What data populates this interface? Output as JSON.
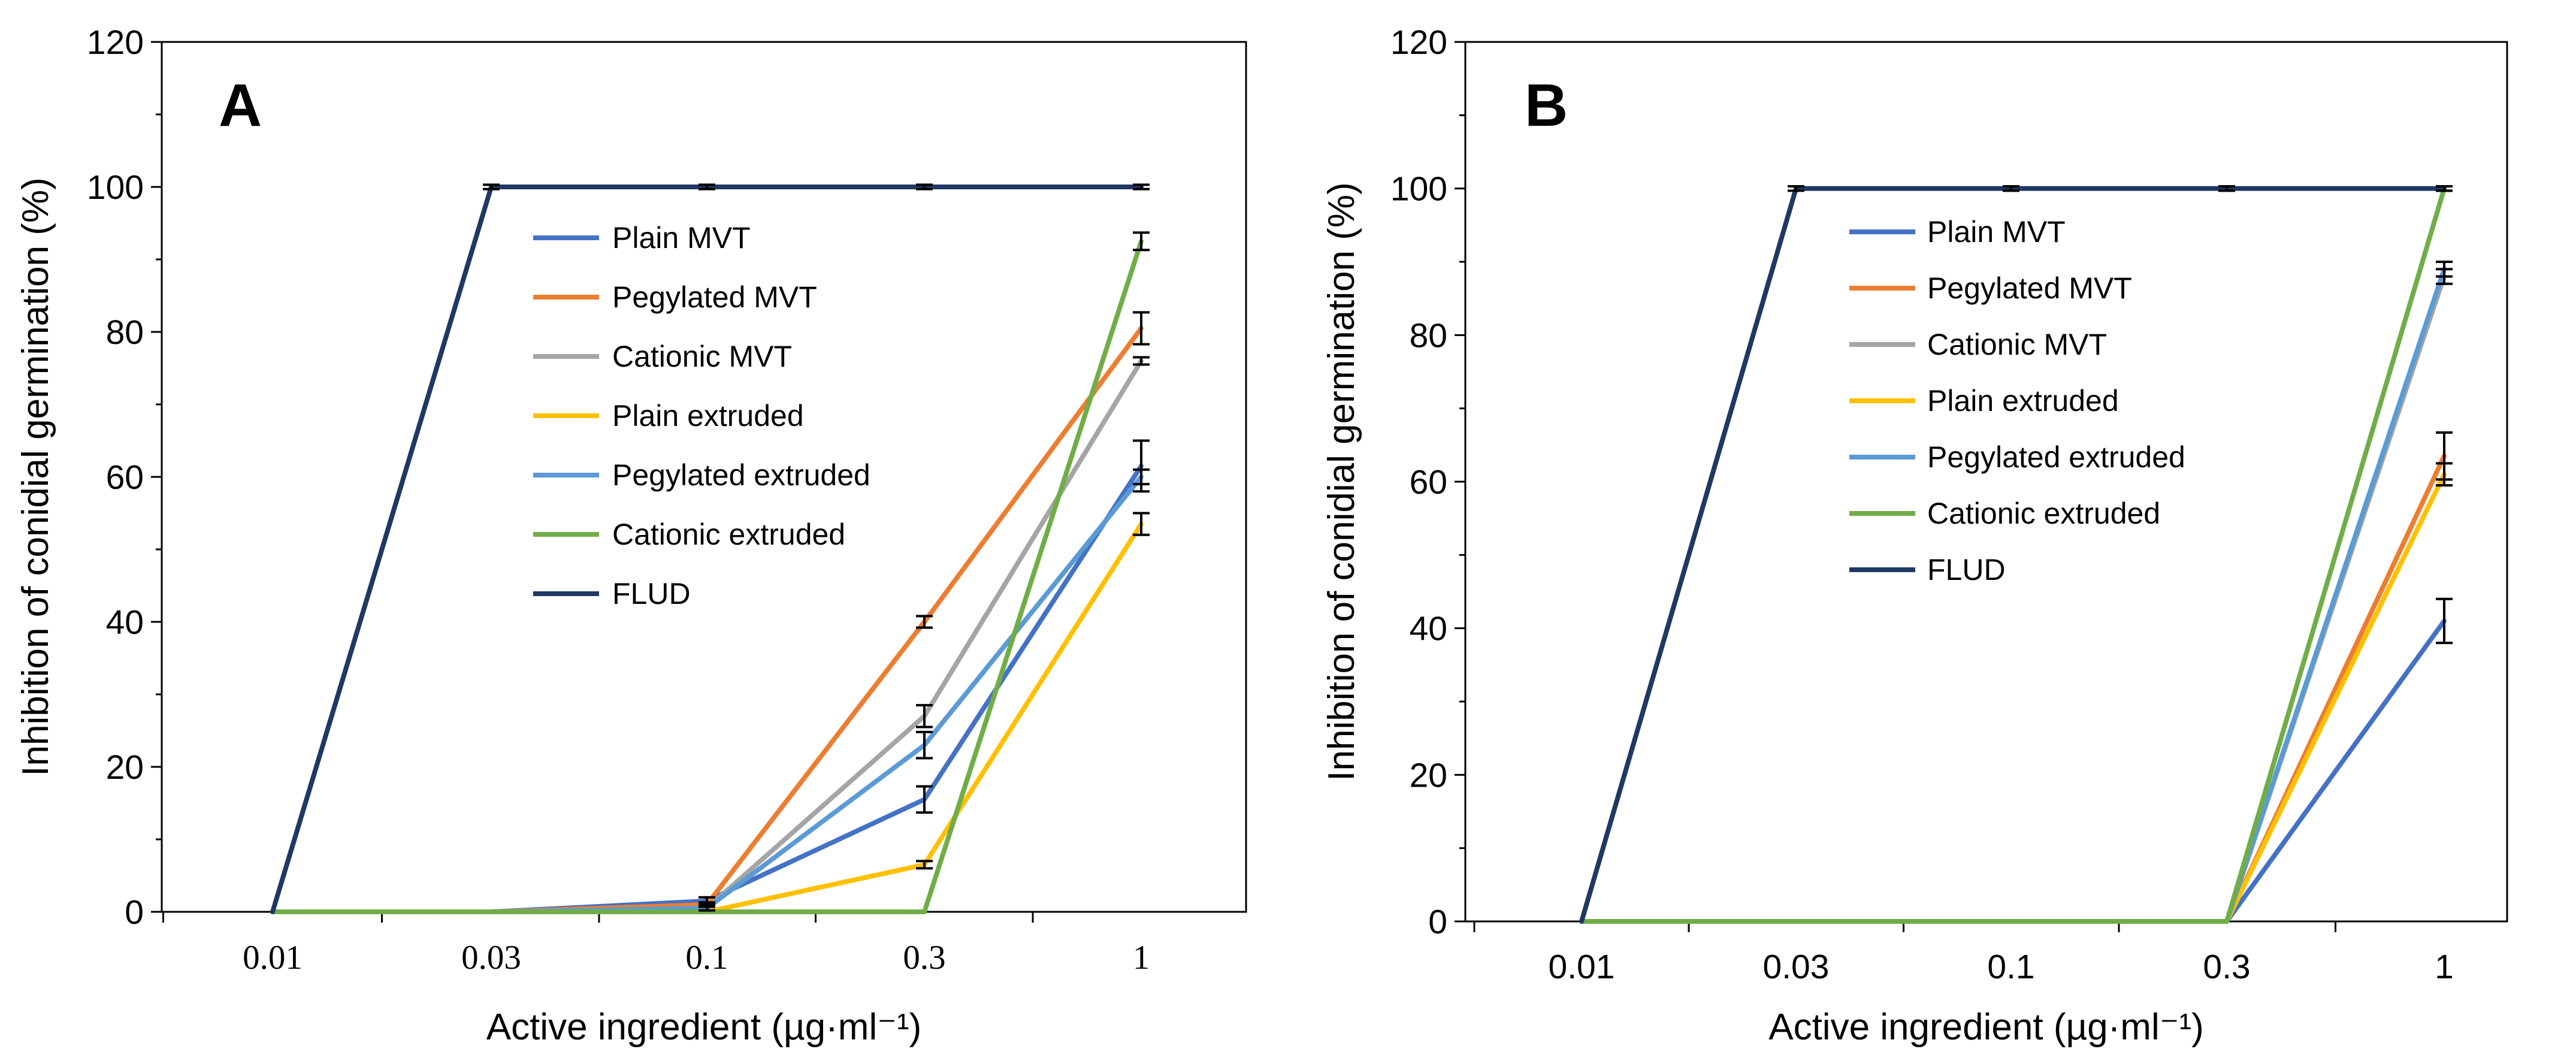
{
  "chart_data": [
    {
      "type": "line",
      "panel_label": "A",
      "xlabel": "Active ingredient (µg·ml⁻¹)",
      "ylabel": "Inhibition of conidial germination (%)",
      "categories": [
        "0.01",
        "0.03",
        "0.1",
        "0.3",
        "1"
      ],
      "ylim": [
        0,
        120
      ],
      "yticks": [
        "0",
        "20",
        "40",
        "60",
        "80",
        "100",
        "120"
      ],
      "grid": false,
      "legend_position": "center",
      "series": [
        {
          "name": "Plain MVT",
          "color": "#4472C4",
          "values": [
            0,
            0,
            1.5,
            15.5,
            61.5
          ],
          "errors": [
            0,
            0,
            0.5,
            1.8,
            3.5
          ]
        },
        {
          "name": "Pegylated MVT",
          "color": "#ED7D31",
          "values": [
            0,
            0,
            1,
            40,
            80.5
          ],
          "errors": [
            0,
            0,
            0.3,
            0.8,
            2.2
          ]
        },
        {
          "name": "Cationic MVT",
          "color": "#A5A5A5",
          "values": [
            0,
            0,
            0.5,
            27,
            76
          ],
          "errors": [
            0,
            0,
            0.3,
            1.5,
            0.5
          ]
        },
        {
          "name": "Plain extruded",
          "color": "#FFC000",
          "values": [
            0,
            0,
            0,
            6.5,
            53.5
          ],
          "errors": [
            0,
            0,
            0,
            0.5,
            1.5
          ]
        },
        {
          "name": "Pegylated extruded",
          "color": "#5B9BD5",
          "values": [
            0,
            0,
            0.5,
            23,
            60
          ],
          "errors": [
            0,
            0,
            0.3,
            1.8,
            1
          ]
        },
        {
          "name": "Cationic extruded",
          "color": "#70AD47",
          "values": [
            0,
            0,
            0,
            0,
            92.5
          ],
          "errors": [
            0,
            0,
            0,
            0,
            1.2
          ]
        },
        {
          "name": "FLUD",
          "color": "#1F3864",
          "values": [
            0,
            100,
            100,
            100,
            100
          ],
          "errors": [
            0,
            0.3,
            0.3,
            0.3,
            0.3
          ]
        }
      ]
    },
    {
      "type": "line",
      "panel_label": "B",
      "xlabel": "Active ingredient (µg·ml⁻¹)",
      "ylabel": "Inhibition of conidial germination (%)",
      "categories": [
        "0.01",
        "0.03",
        "0.1",
        "0.3",
        "1"
      ],
      "ylim": [
        0,
        120
      ],
      "yticks": [
        "0",
        "20",
        "40",
        "60",
        "80",
        "100",
        "120"
      ],
      "grid": false,
      "legend_position": "center",
      "series": [
        {
          "name": "Plain MVT",
          "color": "#4472C4",
          "values": [
            0,
            0,
            0,
            0,
            41
          ],
          "errors": [
            0,
            0,
            0,
            0,
            3
          ]
        },
        {
          "name": "Pegylated MVT",
          "color": "#ED7D31",
          "values": [
            0,
            0,
            0,
            0,
            63.5
          ],
          "errors": [
            0,
            0,
            0,
            0,
            3.2
          ]
        },
        {
          "name": "Cationic MVT",
          "color": "#A5A5A5",
          "values": [
            0,
            0,
            0,
            0,
            88
          ],
          "errors": [
            0,
            0,
            0,
            0,
            1
          ]
        },
        {
          "name": "Plain extruded",
          "color": "#FFC000",
          "values": [
            0,
            0,
            0,
            0,
            61
          ],
          "errors": [
            0,
            0,
            0,
            0,
            1.5
          ]
        },
        {
          "name": "Pegylated extruded",
          "color": "#5B9BD5",
          "values": [
            0,
            0,
            0,
            0,
            89
          ],
          "errors": [
            0,
            0,
            0,
            0,
            1
          ]
        },
        {
          "name": "Cationic extruded",
          "color": "#70AD47",
          "values": [
            0,
            0,
            0,
            0,
            100
          ],
          "errors": [
            0,
            0,
            0,
            0,
            0.3
          ]
        },
        {
          "name": "FLUD",
          "color": "#1F3864",
          "values": [
            0,
            100,
            100,
            100,
            100
          ],
          "errors": [
            0,
            0.3,
            0.3,
            0.3,
            0.3
          ]
        }
      ]
    }
  ]
}
